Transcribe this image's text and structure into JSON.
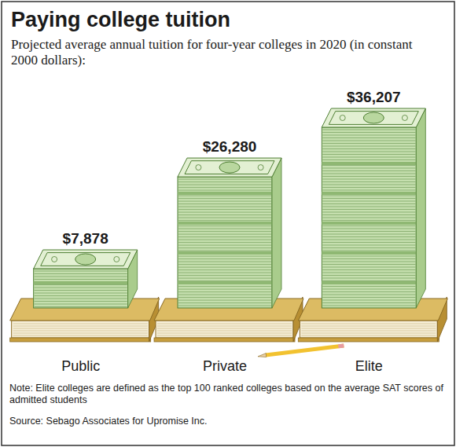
{
  "chart_data": {
    "type": "bar",
    "title": "Paying college tuition",
    "subtitle": "Projected average annual tuition for four-year colleges in 2020 (in constant 2000 dollars):",
    "categories": [
      "Public",
      "Private",
      "Elite"
    ],
    "values": [
      7878,
      26280,
      36207
    ],
    "value_labels": [
      "$7,878",
      "$26,280",
      "$36,207"
    ],
    "data_labels": true,
    "tick_labels": "x",
    "color": "#c5dfae",
    "note": "Note: Elite colleges are defined as the top 100 ranked colleges based on the average SAT scores of admitted students",
    "source": "Source: Sebago Associates for Upromise Inc."
  }
}
